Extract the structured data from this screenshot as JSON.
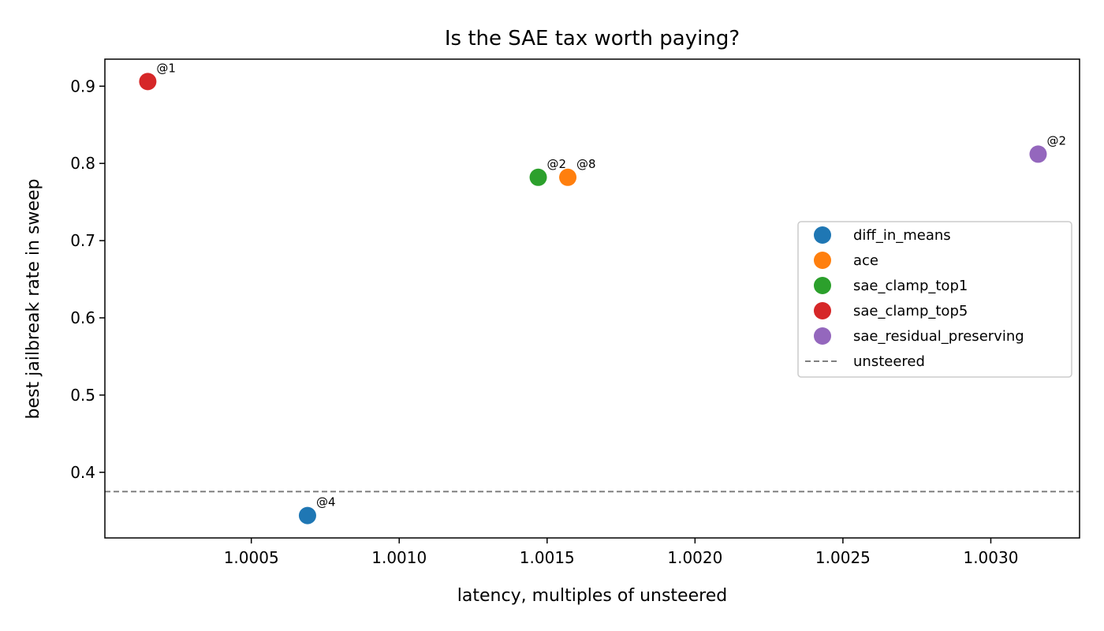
{
  "chart_data": {
    "type": "scatter",
    "title": "Is the SAE tax worth paying?",
    "xlabel": "latency, multiples of unsteered",
    "ylabel": "best jailbreak rate in sweep",
    "xlim": [
      1.000005,
      1.0033
    ],
    "ylim": [
      0.315,
      0.935
    ],
    "xticks": [
      1.0005,
      1.001,
      1.0015,
      1.002,
      1.0025,
      1.003
    ],
    "xtick_labels": [
      "1.0005",
      "1.0010",
      "1.0015",
      "1.0020",
      "1.0025",
      "1.0030"
    ],
    "yticks": [
      0.4,
      0.5,
      0.6,
      0.7,
      0.8,
      0.9
    ],
    "ytick_labels": [
      "0.4",
      "0.5",
      "0.6",
      "0.7",
      "0.8",
      "0.9"
    ],
    "grid": false,
    "legend_position": "center-right",
    "series": [
      {
        "name": "diff_in_means",
        "color": "#1f77b4",
        "x": [
          1.00069
        ],
        "y": [
          0.344
        ],
        "annotation": "@4"
      },
      {
        "name": "ace",
        "color": "#ff7f0e",
        "x": [
          1.00157
        ],
        "y": [
          0.782
        ],
        "annotation": "@8"
      },
      {
        "name": "sae_clamp_top1",
        "color": "#2ca02c",
        "x": [
          1.00147
        ],
        "y": [
          0.782
        ],
        "annotation": "@2"
      },
      {
        "name": "sae_clamp_top5",
        "color": "#d62728",
        "x": [
          1.00015
        ],
        "y": [
          0.906
        ],
        "annotation": "@1"
      },
      {
        "name": "sae_residual_preserving",
        "color": "#9467bd",
        "x": [
          1.00316
        ],
        "y": [
          0.812
        ],
        "annotation": "@2"
      }
    ],
    "reference_line": {
      "name": "unsteered",
      "y": 0.375,
      "color": "#808080",
      "style": "dashed"
    }
  }
}
